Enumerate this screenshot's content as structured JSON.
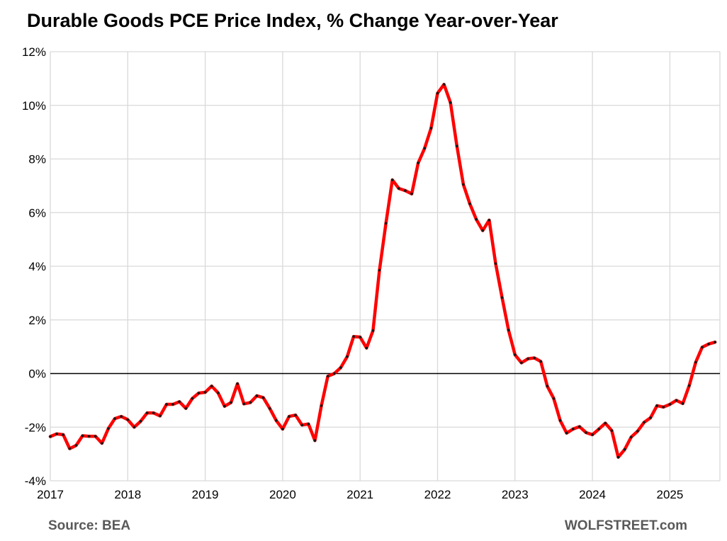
{
  "chart_data": {
    "type": "line",
    "title": "Durable Goods PCE Price Index, % Change Year-over-Year",
    "xlabel": "",
    "ylabel": "",
    "ylim": [
      -4,
      12
    ],
    "y_ticks": [
      "12%",
      "10%",
      "8%",
      "6%",
      "4%",
      "2%",
      "0%",
      "-2%",
      "-4%"
    ],
    "y_tick_values": [
      12,
      10,
      8,
      6,
      4,
      2,
      0,
      -2,
      -4
    ],
    "x_tick_labels": [
      "2017",
      "2018",
      "2019",
      "2020",
      "2021",
      "2022",
      "2023",
      "2024",
      "2025"
    ],
    "x_start": "2017-01",
    "grid": "vertical and horizontal gridlines",
    "series_color": "#ff0000",
    "marker_color": "#1a1a1a",
    "zero_line_color": "#000000",
    "series": [
      {
        "name": "",
        "values": [
          -2.35,
          -2.25,
          -2.28,
          -2.8,
          -2.68,
          -2.32,
          -2.34,
          -2.34,
          -2.6,
          -2.05,
          -1.68,
          -1.6,
          -1.72,
          -2.0,
          -1.78,
          -1.47,
          -1.47,
          -1.58,
          -1.15,
          -1.15,
          -1.05,
          -1.3,
          -0.93,
          -0.73,
          -0.7,
          -0.47,
          -0.72,
          -1.22,
          -1.08,
          -0.38,
          -1.13,
          -1.08,
          -0.83,
          -0.9,
          -1.3,
          -1.75,
          -2.07,
          -1.6,
          -1.55,
          -1.92,
          -1.88,
          -2.5,
          -1.2,
          -0.1,
          0.0,
          0.22,
          0.63,
          1.38,
          1.36,
          0.95,
          1.6,
          3.85,
          5.6,
          7.22,
          6.9,
          6.82,
          6.7,
          7.85,
          8.4,
          9.15,
          10.45,
          10.78,
          10.1,
          8.48,
          7.05,
          6.33,
          5.75,
          5.33,
          5.72,
          4.1,
          2.83,
          1.62,
          0.7,
          0.4,
          0.55,
          0.58,
          0.45,
          -0.47,
          -0.93,
          -1.75,
          -2.22,
          -2.07,
          -1.98,
          -2.2,
          -2.28,
          -2.07,
          -1.85,
          -2.13,
          -3.12,
          -2.83,
          -2.37,
          -2.15,
          -1.82,
          -1.65,
          -1.2,
          -1.25,
          -1.15,
          -1.0,
          -1.12,
          -0.45,
          0.42,
          0.98,
          1.1,
          1.17
        ]
      }
    ]
  },
  "footer": {
    "source": "Source: BEA",
    "publisher": "WOLFSTREET.com"
  }
}
